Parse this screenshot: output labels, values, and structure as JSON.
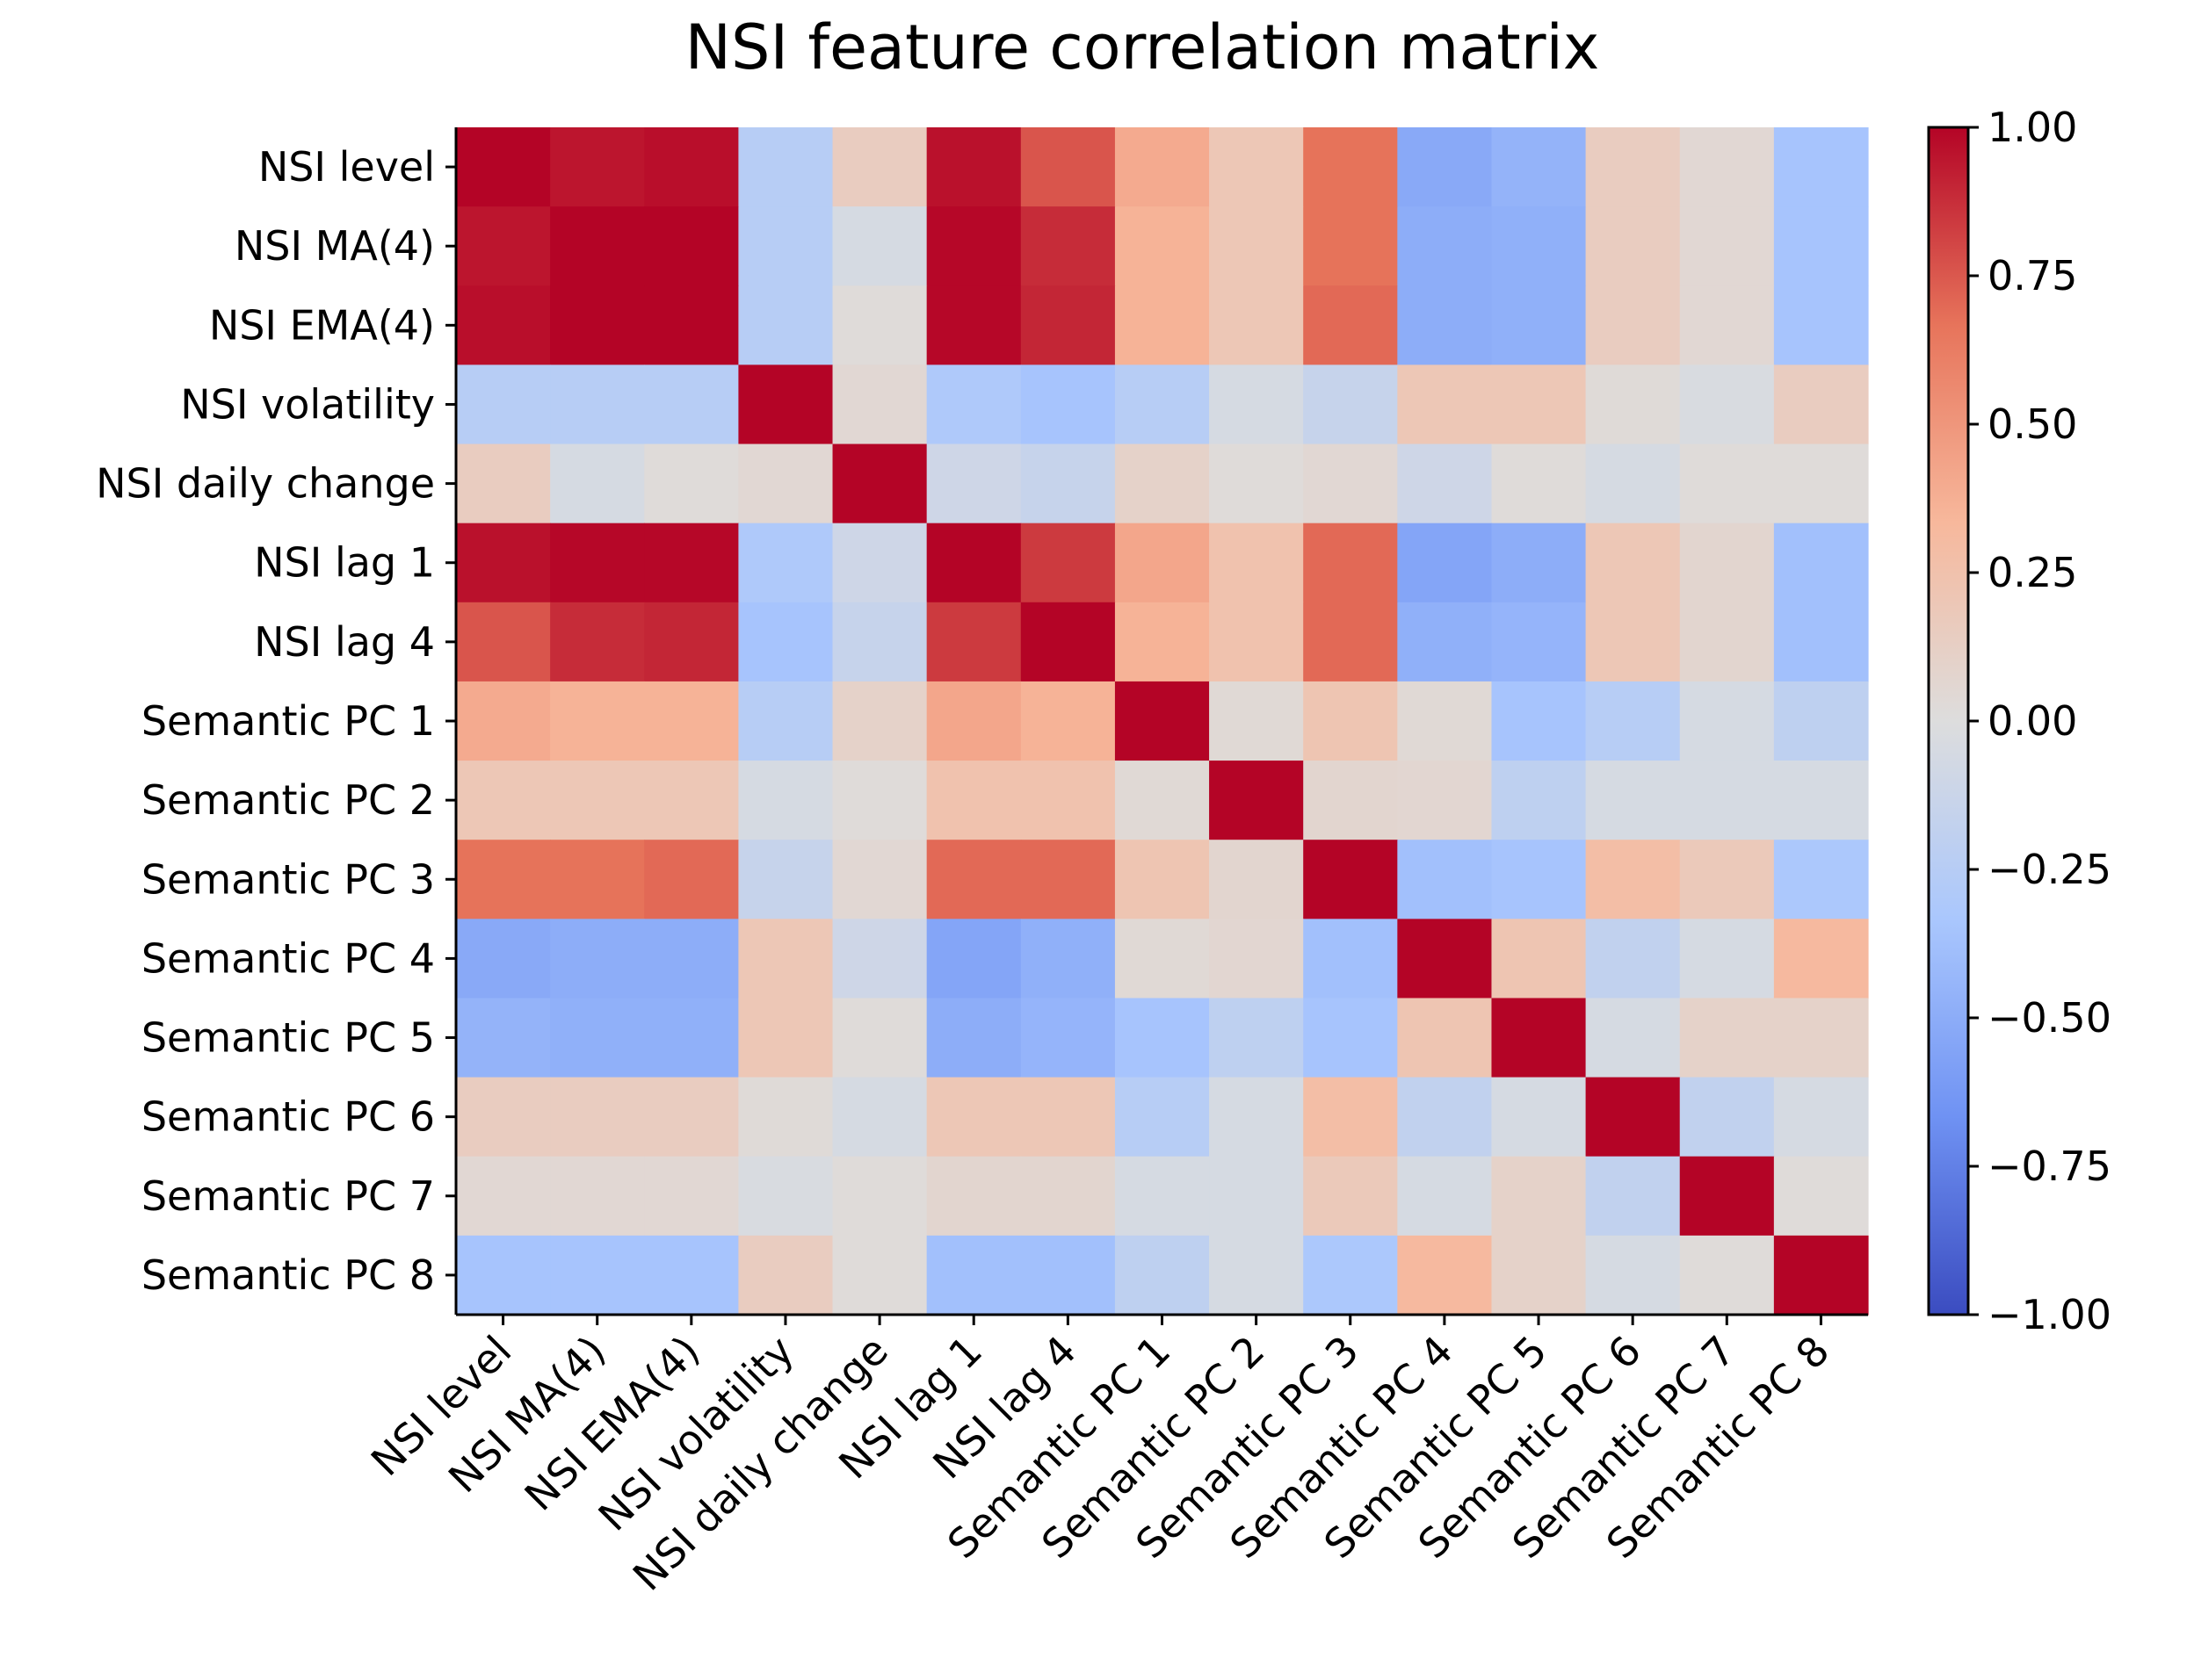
{
  "chart_data": {
    "type": "heatmap",
    "title": "NSI feature correlation matrix",
    "labels": [
      "NSI level",
      "NSI MA(4)",
      "NSI EMA(4)",
      "NSI volatility",
      "NSI daily change",
      "NSI lag 1",
      "NSI lag 4",
      "Semantic PC 1",
      "Semantic PC 2",
      "Semantic PC 3",
      "Semantic PC 4",
      "Semantic PC 5",
      "Semantic PC 6",
      "Semantic PC 7",
      "Semantic PC 8"
    ],
    "matrix": [
      [
        1.0,
        0.95,
        0.97,
        -0.25,
        0.15,
        0.96,
        0.76,
        0.4,
        0.2,
        0.67,
        -0.52,
        -0.46,
        0.15,
        0.05,
        -0.35
      ],
      [
        0.95,
        1.0,
        1.0,
        -0.25,
        -0.05,
        0.99,
        0.88,
        0.36,
        0.2,
        0.67,
        -0.5,
        -0.48,
        0.15,
        0.05,
        -0.35
      ],
      [
        0.97,
        1.0,
        1.0,
        -0.25,
        0.02,
        0.99,
        0.9,
        0.36,
        0.2,
        0.7,
        -0.5,
        -0.48,
        0.15,
        0.05,
        -0.35
      ],
      [
        -0.25,
        -0.25,
        -0.25,
        1.0,
        0.05,
        -0.3,
        -0.35,
        -0.25,
        -0.05,
        -0.15,
        0.2,
        0.2,
        0.03,
        -0.03,
        0.15
      ],
      [
        0.15,
        -0.05,
        0.02,
        0.05,
        1.0,
        -0.1,
        -0.15,
        0.1,
        0.02,
        0.05,
        -0.1,
        0.02,
        -0.05,
        0.02,
        0.02
      ],
      [
        0.96,
        0.99,
        0.99,
        -0.3,
        -0.1,
        1.0,
        0.84,
        0.42,
        0.24,
        0.7,
        -0.55,
        -0.5,
        0.2,
        0.07,
        -0.38
      ],
      [
        0.76,
        0.88,
        0.9,
        -0.35,
        -0.15,
        0.84,
        1.0,
        0.36,
        0.24,
        0.7,
        -0.48,
        -0.45,
        0.2,
        0.07,
        -0.38
      ],
      [
        0.4,
        0.36,
        0.36,
        -0.25,
        0.1,
        0.42,
        0.36,
        1.0,
        0.04,
        0.22,
        0.04,
        -0.35,
        -0.25,
        -0.05,
        -0.2
      ],
      [
        0.2,
        0.2,
        0.2,
        -0.05,
        0.02,
        0.24,
        0.24,
        0.04,
        1.0,
        0.07,
        0.06,
        -0.2,
        -0.05,
        -0.05,
        -0.05
      ],
      [
        0.67,
        0.67,
        0.7,
        -0.15,
        0.05,
        0.7,
        0.7,
        0.22,
        0.07,
        1.0,
        -0.38,
        -0.35,
        0.28,
        0.18,
        -0.32
      ],
      [
        -0.52,
        -0.5,
        -0.5,
        0.2,
        -0.1,
        -0.55,
        -0.48,
        0.04,
        0.06,
        -0.38,
        1.0,
        0.22,
        -0.18,
        -0.05,
        0.32
      ],
      [
        -0.46,
        -0.48,
        -0.48,
        0.2,
        0.02,
        -0.5,
        -0.45,
        -0.35,
        -0.2,
        -0.35,
        0.22,
        1.0,
        -0.05,
        0.1,
        0.1
      ],
      [
        0.15,
        0.15,
        0.15,
        0.03,
        -0.05,
        0.2,
        0.2,
        -0.25,
        -0.05,
        0.28,
        -0.18,
        -0.05,
        1.0,
        -0.18,
        -0.05
      ],
      [
        0.05,
        0.05,
        0.05,
        -0.03,
        0.02,
        0.07,
        0.07,
        -0.05,
        -0.05,
        0.18,
        -0.05,
        0.1,
        -0.18,
        1.0,
        0.02
      ],
      [
        -0.35,
        -0.35,
        -0.35,
        0.15,
        0.02,
        -0.38,
        -0.38,
        -0.2,
        -0.05,
        -0.32,
        0.32,
        0.1,
        -0.05,
        0.02,
        1.0
      ]
    ],
    "colormap": "coolwarm",
    "vmin": -1.0,
    "vmax": 1.0,
    "colorbar_ticks": [
      "1.00",
      "0.75",
      "0.50",
      "0.25",
      "0.00",
      "−0.25",
      "−0.50",
      "−0.75",
      "−1.00"
    ],
    "colorbar_values": [
      1.0,
      0.75,
      0.5,
      0.25,
      0.0,
      -0.25,
      -0.5,
      -0.75,
      -1.0
    ],
    "cmap_stops": [
      "#3b4cc0",
      "#6f92f3",
      "#aac7fd",
      "#dddddd",
      "#f7b89c",
      "#e7745b",
      "#b40426"
    ],
    "grid": false
  }
}
